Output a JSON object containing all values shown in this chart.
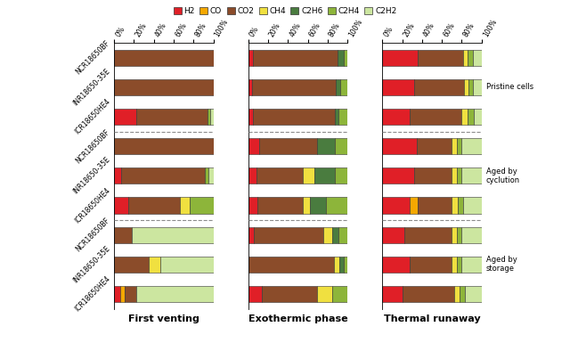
{
  "categories_group1": [
    "NCR18650BF",
    "INR18650-35E",
    "ICR18650HE4"
  ],
  "categories_group2": [
    "NCR18650BF",
    "INR18650-35E",
    "ICR18650HE4"
  ],
  "categories_group3": [
    "NCR18650BF",
    "INR18650-35E",
    "ICR18650HE4"
  ],
  "group_labels": [
    "Pristine cells",
    "Aged by\ncyclution",
    "Aged by\nstorage"
  ],
  "phase_labels": [
    "First venting",
    "Exothermic phase",
    "Thermal runaway"
  ],
  "gas_labels": [
    "H2",
    "CO",
    "CO2",
    "CH4",
    "C2H6",
    "C2H4",
    "C2H2"
  ],
  "gas_colors": [
    "#e01f27",
    "#f5a800",
    "#8b4c2a",
    "#f0e040",
    "#4a7c3f",
    "#8db53a",
    "#cce6a0"
  ],
  "first_venting": [
    [
      0.0,
      0.0,
      1.0,
      0.0,
      0.0,
      0.0,
      0.0
    ],
    [
      0.0,
      0.0,
      1.0,
      0.0,
      0.0,
      0.0,
      0.0
    ],
    [
      0.22,
      0.0,
      0.72,
      0.0,
      0.0,
      0.03,
      0.03
    ],
    [
      0.0,
      0.0,
      1.0,
      0.0,
      0.0,
      0.0,
      0.0
    ],
    [
      0.07,
      0.0,
      0.84,
      0.0,
      0.0,
      0.04,
      0.05
    ],
    [
      0.14,
      0.0,
      0.52,
      0.1,
      0.0,
      0.24,
      0.0
    ],
    [
      0.0,
      0.0,
      0.18,
      0.0,
      0.0,
      0.0,
      0.82
    ],
    [
      0.0,
      0.0,
      0.35,
      0.12,
      0.0,
      0.0,
      0.53
    ],
    [
      0.06,
      0.05,
      0.11,
      0.0,
      0.0,
      0.0,
      0.78
    ]
  ],
  "exothermic_phase": [
    [
      0.05,
      0.0,
      0.85,
      0.0,
      0.06,
      0.04,
      0.0
    ],
    [
      0.04,
      0.0,
      0.84,
      0.0,
      0.05,
      0.07,
      0.0
    ],
    [
      0.05,
      0.0,
      0.82,
      0.0,
      0.04,
      0.09,
      0.0
    ],
    [
      0.11,
      0.0,
      0.58,
      0.0,
      0.18,
      0.13,
      0.0
    ],
    [
      0.08,
      0.0,
      0.47,
      0.12,
      0.2,
      0.13,
      0.0
    ],
    [
      0.09,
      0.0,
      0.46,
      0.07,
      0.16,
      0.22,
      0.0
    ],
    [
      0.06,
      0.0,
      0.7,
      0.09,
      0.06,
      0.09,
      0.0
    ],
    [
      0.0,
      0.0,
      0.86,
      0.06,
      0.04,
      0.04,
      0.0
    ],
    [
      0.14,
      0.0,
      0.55,
      0.16,
      0.0,
      0.15,
      0.0
    ]
  ],
  "thermal_runaway": [
    [
      0.36,
      0.0,
      0.45,
      0.05,
      0.0,
      0.05,
      0.09
    ],
    [
      0.32,
      0.0,
      0.5,
      0.05,
      0.0,
      0.04,
      0.09
    ],
    [
      0.28,
      0.0,
      0.52,
      0.06,
      0.0,
      0.06,
      0.08
    ],
    [
      0.35,
      0.0,
      0.35,
      0.05,
      0.0,
      0.05,
      0.2
    ],
    [
      0.32,
      0.0,
      0.38,
      0.05,
      0.0,
      0.05,
      0.2
    ],
    [
      0.28,
      0.08,
      0.34,
      0.06,
      0.0,
      0.05,
      0.19
    ],
    [
      0.22,
      0.0,
      0.48,
      0.05,
      0.0,
      0.05,
      0.2
    ],
    [
      0.28,
      0.0,
      0.42,
      0.05,
      0.0,
      0.05,
      0.2
    ],
    [
      0.2,
      0.0,
      0.52,
      0.06,
      0.0,
      0.05,
      0.17
    ]
  ],
  "background_color": "#ffffff",
  "bar_height": 0.55
}
